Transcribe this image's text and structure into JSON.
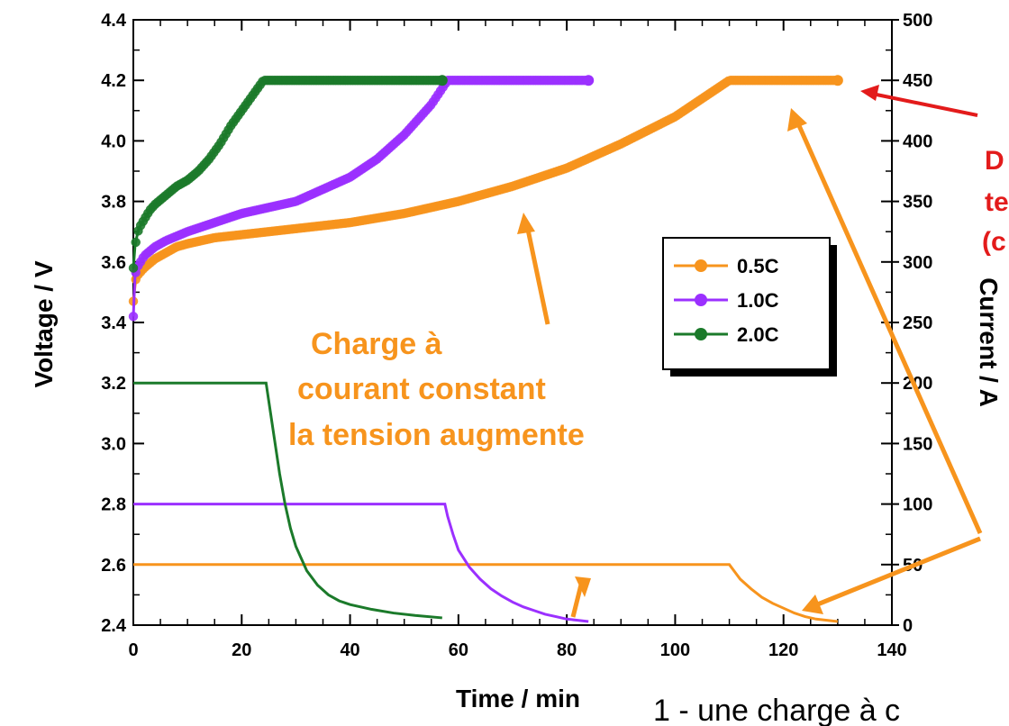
{
  "chart_data": {
    "type": "line",
    "xlabel": "Time / min",
    "ylabel_left": "Voltage / V",
    "ylabel_right": "Current / A",
    "xlim": [
      0,
      140
    ],
    "ylim_left": [
      2.4,
      4.4
    ],
    "ylim_right": [
      0,
      500
    ],
    "x_ticks": [
      "0",
      "20",
      "40",
      "60",
      "80",
      "100",
      "120",
      "140"
    ],
    "y_left_ticks": [
      "2.4",
      "2.6",
      "2.8",
      "3.0",
      "3.2",
      "3.4",
      "3.6",
      "3.8",
      "4.0",
      "4.2",
      "4.4"
    ],
    "y_right_ticks": [
      "0",
      "50",
      "100",
      "150",
      "200",
      "250",
      "300",
      "350",
      "400",
      "450",
      "500"
    ],
    "legend": {
      "placement": "center-right"
    },
    "series": [
      {
        "name": "0.5C",
        "color": "#f7941d",
        "voltage": {
          "x": [
            0,
            0.5,
            1,
            2,
            4,
            6,
            8,
            10,
            15,
            20,
            30,
            40,
            50,
            60,
            70,
            80,
            90,
            100,
            105,
            110,
            115,
            120,
            125,
            130
          ],
          "y": [
            3.47,
            3.55,
            3.56,
            3.58,
            3.61,
            3.63,
            3.65,
            3.66,
            3.68,
            3.69,
            3.71,
            3.73,
            3.76,
            3.8,
            3.85,
            3.91,
            3.99,
            4.08,
            4.14,
            4.2,
            4.2,
            4.2,
            4.2,
            4.2
          ]
        },
        "current": {
          "x": [
            0,
            20,
            40,
            60,
            80,
            100,
            110,
            110.5,
            112,
            114,
            116,
            118,
            120,
            122,
            124,
            126,
            128,
            130
          ],
          "y": [
            50,
            50,
            50,
            50,
            50,
            50,
            50,
            47,
            38,
            30,
            23,
            18,
            14,
            10,
            7,
            5,
            4,
            3
          ]
        }
      },
      {
        "name": "1.0C",
        "color": "#9b30ff",
        "voltage": {
          "x": [
            0,
            0.3,
            0.6,
            1,
            2,
            4,
            6,
            10,
            15,
            20,
            25,
            30,
            35,
            40,
            45,
            50,
            55,
            58,
            60,
            70,
            80,
            84
          ],
          "y": [
            3.42,
            3.55,
            3.58,
            3.59,
            3.62,
            3.65,
            3.67,
            3.7,
            3.73,
            3.76,
            3.78,
            3.8,
            3.84,
            3.88,
            3.94,
            4.02,
            4.12,
            4.2,
            4.2,
            4.2,
            4.2,
            4.2
          ]
        },
        "current": {
          "x": [
            0,
            20,
            40,
            57.5,
            58,
            59,
            60,
            62,
            64,
            66,
            68,
            70,
            72,
            74,
            76,
            78,
            80,
            82,
            84
          ],
          "y": [
            100,
            100,
            100,
            100,
            90,
            75,
            62,
            48,
            38,
            30,
            24,
            19,
            15,
            12,
            9,
            7,
            5,
            4,
            3
          ]
        }
      },
      {
        "name": "2.0C",
        "color": "#1b7a2a",
        "voltage": {
          "x": [
            0,
            0.3,
            0.6,
            1,
            2,
            3,
            4,
            6,
            8,
            10,
            12,
            14,
            16,
            18,
            20,
            22,
            24,
            25,
            30,
            40,
            50,
            57
          ],
          "y": [
            3.58,
            3.65,
            3.68,
            3.71,
            3.74,
            3.77,
            3.79,
            3.82,
            3.85,
            3.87,
            3.9,
            3.94,
            3.99,
            4.05,
            4.1,
            4.15,
            4.2,
            4.2,
            4.2,
            4.2,
            4.2,
            4.2
          ]
        },
        "current": {
          "x": [
            0,
            10,
            20,
            24.5,
            25,
            26,
            27,
            28,
            29,
            30,
            32,
            34,
            36,
            38,
            40,
            44,
            48,
            52,
            57
          ],
          "y": [
            200,
            200,
            200,
            200,
            185,
            155,
            125,
            100,
            80,
            65,
            45,
            33,
            25,
            20,
            17,
            13,
            10,
            8,
            6
          ]
        }
      }
    ]
  },
  "annotations": {
    "cc_line1": "Charge à",
    "cc_line2": "courant constant",
    "cc_line3": "la tension augmente",
    "red_line1": "D",
    "red_line2": "te",
    "red_line3": "(c",
    "bottom_text": "1 - une charge à c"
  }
}
